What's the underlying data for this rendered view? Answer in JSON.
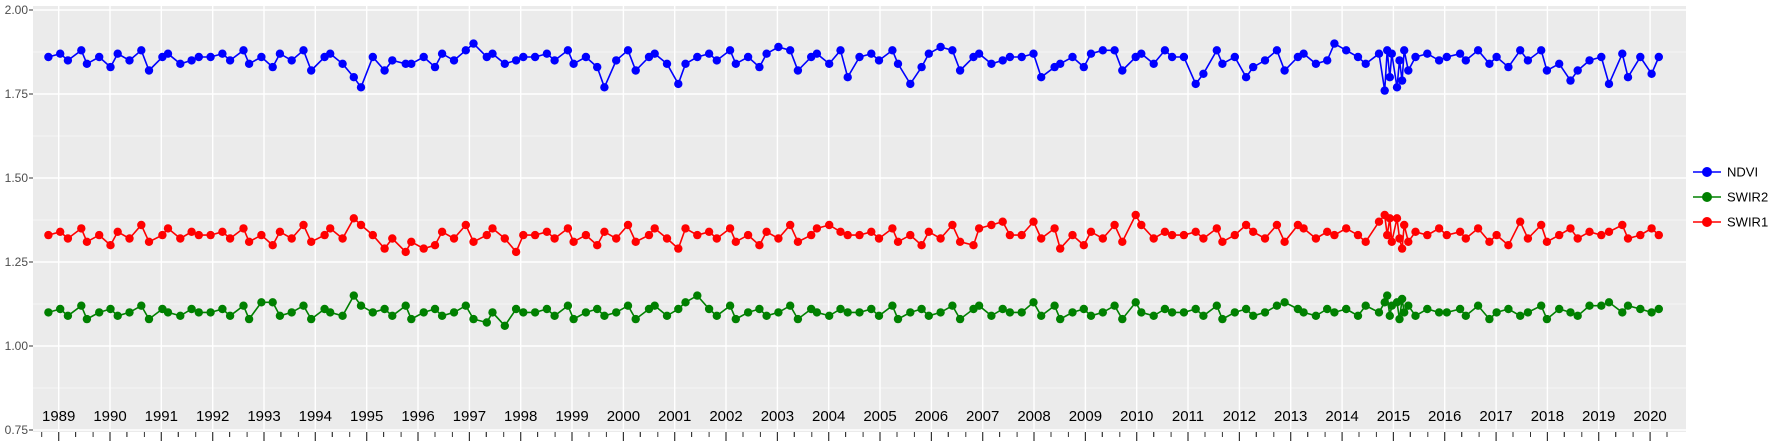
{
  "chart_data": {
    "type": "line",
    "title": "",
    "xlabel": "",
    "ylabel": "",
    "xlim": [
      1988.5,
      2020.7
    ],
    "ylim": [
      0.75,
      2.0
    ],
    "grid": true,
    "panel_bg": "#EBEBEB",
    "grid_color": "#FFFFFF",
    "tick_text_color": "#4D4D4D",
    "x_tick_years": [
      1989,
      1990,
      1991,
      1992,
      1993,
      1994,
      1995,
      1996,
      1997,
      1998,
      1999,
      2000,
      2001,
      2002,
      2003,
      2004,
      2005,
      2006,
      2007,
      2008,
      2009,
      2010,
      2011,
      2012,
      2013,
      2014,
      2015,
      2016,
      2017,
      2018,
      2019,
      2020
    ],
    "x_tick_labels": [
      "1989",
      "1990",
      "1991",
      "1992",
      "1993",
      "1994",
      "1995",
      "1996",
      "1997",
      "1998",
      "1999",
      "2000",
      "2001",
      "2002",
      "2003",
      "2004",
      "2005",
      "2006",
      "2007",
      "2008",
      "2009",
      "2010",
      "2011",
      "2012",
      "2013",
      "2014",
      "2015",
      "2016",
      "2017",
      "2018",
      "2019",
      "2020"
    ],
    "y_tick_values": [
      2.0,
      1.75,
      1.5,
      1.25,
      1.0,
      0.75
    ],
    "y_tick_labels": [
      "2.00",
      "1.75",
      "1.50",
      "1.25",
      "1.00",
      "0.75"
    ],
    "x": [
      1988.8,
      1989.03,
      1989.18,
      1989.44,
      1989.55,
      1989.79,
      1990.01,
      1990.15,
      1990.38,
      1990.61,
      1990.76,
      1991.02,
      1991.13,
      1991.37,
      1991.59,
      1991.73,
      1991.96,
      1992.19,
      1992.34,
      1992.6,
      1992.71,
      1992.95,
      1993.17,
      1993.31,
      1993.54,
      1993.77,
      1993.92,
      1994.18,
      1994.29,
      1994.53,
      1994.75,
      1994.89,
      1995.12,
      1995.35,
      1995.5,
      1995.76,
      1995.87,
      1996.11,
      1996.33,
      1996.47,
      1996.7,
      1996.93,
      1997.08,
      1997.34,
      1997.45,
      1997.69,
      1997.91,
      1998.05,
      1998.28,
      1998.51,
      1998.66,
      1998.92,
      1999.03,
      1999.27,
      1999.49,
      1999.63,
      1999.86,
      2000.09,
      2000.24,
      2000.5,
      2000.61,
      2000.85,
      2001.07,
      2001.21,
      2001.44,
      2001.67,
      2001.82,
      2002.08,
      2002.19,
      2002.43,
      2002.65,
      2002.79,
      2003.02,
      2003.25,
      2003.4,
      2003.66,
      2003.77,
      2004.01,
      2004.23,
      2004.37,
      2004.6,
      2004.83,
      2004.98,
      2005.24,
      2005.35,
      2005.59,
      2005.81,
      2005.95,
      2006.18,
      2006.41,
      2006.56,
      2006.82,
      2006.93,
      2007.17,
      2007.39,
      2007.53,
      2007.76,
      2007.99,
      2008.14,
      2008.4,
      2008.51,
      2008.75,
      2008.97,
      2009.11,
      2009.34,
      2009.57,
      2009.72,
      2009.98,
      2010.09,
      2010.33,
      2010.55,
      2010.69,
      2010.92,
      2011.15,
      2011.3,
      2011.56,
      2011.67,
      2011.91,
      2012.13,
      2012.27,
      2012.5,
      2012.73,
      2012.88,
      2013.14,
      2013.25,
      2013.49,
      2013.71,
      2013.85,
      2014.08,
      2014.31,
      2014.46,
      2014.72,
      2014.83,
      2014.88,
      2014.93,
      2014.97,
      2015.07,
      2015.12,
      2015.17,
      2015.21,
      2015.29,
      2015.43,
      2015.66,
      2015.89,
      2016.04,
      2016.3,
      2016.41,
      2016.65,
      2016.87,
      2017.01,
      2017.24,
      2017.47,
      2017.62,
      2017.88,
      2017.99,
      2018.23,
      2018.45,
      2018.59,
      2018.82,
      2019.05,
      2019.2,
      2019.46,
      2019.57,
      2019.81,
      2020.03,
      2020.17
    ],
    "series": [
      {
        "name": "NDVI",
        "color": "#0000FF",
        "values": [
          1.86,
          1.87,
          1.85,
          1.88,
          1.84,
          1.86,
          1.83,
          1.87,
          1.85,
          1.88,
          1.82,
          1.86,
          1.87,
          1.84,
          1.85,
          1.86,
          1.86,
          1.87,
          1.85,
          1.88,
          1.84,
          1.86,
          1.83,
          1.87,
          1.85,
          1.88,
          1.82,
          1.86,
          1.87,
          1.84,
          1.8,
          1.77,
          1.86,
          1.82,
          1.85,
          1.84,
          1.84,
          1.86,
          1.83,
          1.87,
          1.85,
          1.88,
          1.9,
          1.86,
          1.87,
          1.84,
          1.85,
          1.86,
          1.86,
          1.87,
          1.85,
          1.88,
          1.84,
          1.86,
          1.83,
          1.77,
          1.85,
          1.88,
          1.82,
          1.86,
          1.87,
          1.84,
          1.78,
          1.84,
          1.86,
          1.87,
          1.85,
          1.88,
          1.84,
          1.86,
          1.83,
          1.87,
          1.89,
          1.88,
          1.82,
          1.86,
          1.87,
          1.84,
          1.88,
          1.8,
          1.86,
          1.87,
          1.85,
          1.88,
          1.84,
          1.78,
          1.83,
          1.87,
          1.89,
          1.88,
          1.82,
          1.86,
          1.87,
          1.84,
          1.85,
          1.86,
          1.86,
          1.87,
          1.8,
          1.83,
          1.84,
          1.86,
          1.83,
          1.87,
          1.88,
          1.88,
          1.82,
          1.86,
          1.87,
          1.84,
          1.88,
          1.86,
          1.86,
          1.78,
          1.81,
          1.88,
          1.84,
          1.86,
          1.8,
          1.83,
          1.85,
          1.88,
          1.82,
          1.86,
          1.87,
          1.84,
          1.85,
          1.9,
          1.88,
          1.86,
          1.84,
          1.87,
          1.76,
          1.88,
          1.8,
          1.87,
          1.77,
          1.85,
          1.79,
          1.88,
          1.82,
          1.86,
          1.87,
          1.85,
          1.86,
          1.87,
          1.85,
          1.88,
          1.84,
          1.86,
          1.83,
          1.88,
          1.85,
          1.88,
          1.82,
          1.84,
          1.79,
          1.82,
          1.85,
          1.86,
          1.78,
          1.87,
          1.8,
          1.86,
          1.81,
          1.86
        ]
      },
      {
        "name": "SWIR2",
        "color": "#008000",
        "values": [
          1.1,
          1.11,
          1.09,
          1.12,
          1.08,
          1.1,
          1.11,
          1.09,
          1.1,
          1.12,
          1.08,
          1.11,
          1.1,
          1.09,
          1.11,
          1.1,
          1.1,
          1.11,
          1.09,
          1.12,
          1.08,
          1.13,
          1.13,
          1.09,
          1.1,
          1.12,
          1.08,
          1.11,
          1.1,
          1.09,
          1.15,
          1.12,
          1.1,
          1.11,
          1.09,
          1.12,
          1.08,
          1.1,
          1.11,
          1.09,
          1.1,
          1.12,
          1.08,
          1.07,
          1.1,
          1.06,
          1.11,
          1.1,
          1.1,
          1.11,
          1.09,
          1.12,
          1.08,
          1.1,
          1.11,
          1.09,
          1.1,
          1.12,
          1.08,
          1.11,
          1.12,
          1.09,
          1.11,
          1.13,
          1.15,
          1.11,
          1.09,
          1.12,
          1.08,
          1.1,
          1.11,
          1.09,
          1.1,
          1.12,
          1.08,
          1.11,
          1.1,
          1.09,
          1.11,
          1.1,
          1.1,
          1.11,
          1.09,
          1.12,
          1.08,
          1.1,
          1.11,
          1.09,
          1.1,
          1.12,
          1.08,
          1.11,
          1.12,
          1.09,
          1.11,
          1.1,
          1.1,
          1.13,
          1.09,
          1.12,
          1.08,
          1.1,
          1.11,
          1.09,
          1.1,
          1.12,
          1.08,
          1.13,
          1.1,
          1.09,
          1.11,
          1.1,
          1.1,
          1.11,
          1.09,
          1.12,
          1.08,
          1.1,
          1.11,
          1.09,
          1.1,
          1.12,
          1.13,
          1.11,
          1.1,
          1.09,
          1.11,
          1.1,
          1.11,
          1.09,
          1.12,
          1.1,
          1.13,
          1.15,
          1.09,
          1.12,
          1.13,
          1.08,
          1.14,
          1.1,
          1.12,
          1.09,
          1.11,
          1.1,
          1.1,
          1.11,
          1.09,
          1.12,
          1.08,
          1.1,
          1.11,
          1.09,
          1.1,
          1.12,
          1.08,
          1.11,
          1.1,
          1.09,
          1.12,
          1.12,
          1.13,
          1.1,
          1.12,
          1.11,
          1.1,
          1.11
        ]
      },
      {
        "name": "SWIR1",
        "color": "#FF0000",
        "values": [
          1.33,
          1.34,
          1.32,
          1.35,
          1.31,
          1.33,
          1.3,
          1.34,
          1.32,
          1.36,
          1.31,
          1.33,
          1.35,
          1.32,
          1.34,
          1.33,
          1.33,
          1.34,
          1.32,
          1.35,
          1.31,
          1.33,
          1.3,
          1.34,
          1.32,
          1.36,
          1.31,
          1.33,
          1.35,
          1.32,
          1.38,
          1.36,
          1.33,
          1.29,
          1.32,
          1.28,
          1.31,
          1.29,
          1.3,
          1.34,
          1.32,
          1.36,
          1.31,
          1.33,
          1.35,
          1.32,
          1.28,
          1.33,
          1.33,
          1.34,
          1.32,
          1.35,
          1.31,
          1.33,
          1.3,
          1.34,
          1.32,
          1.36,
          1.31,
          1.33,
          1.35,
          1.32,
          1.29,
          1.35,
          1.33,
          1.34,
          1.32,
          1.35,
          1.31,
          1.33,
          1.3,
          1.34,
          1.32,
          1.36,
          1.31,
          1.33,
          1.35,
          1.36,
          1.34,
          1.33,
          1.33,
          1.34,
          1.32,
          1.35,
          1.31,
          1.33,
          1.3,
          1.34,
          1.32,
          1.36,
          1.31,
          1.3,
          1.35,
          1.36,
          1.37,
          1.33,
          1.33,
          1.37,
          1.32,
          1.35,
          1.29,
          1.33,
          1.3,
          1.34,
          1.32,
          1.36,
          1.31,
          1.39,
          1.36,
          1.32,
          1.34,
          1.33,
          1.33,
          1.34,
          1.32,
          1.35,
          1.31,
          1.33,
          1.36,
          1.34,
          1.32,
          1.36,
          1.31,
          1.36,
          1.35,
          1.32,
          1.34,
          1.33,
          1.35,
          1.33,
          1.31,
          1.37,
          1.39,
          1.33,
          1.38,
          1.31,
          1.38,
          1.32,
          1.29,
          1.36,
          1.31,
          1.34,
          1.33,
          1.35,
          1.33,
          1.34,
          1.32,
          1.35,
          1.31,
          1.33,
          1.3,
          1.37,
          1.32,
          1.36,
          1.31,
          1.33,
          1.35,
          1.32,
          1.34,
          1.33,
          1.34,
          1.36,
          1.32,
          1.33,
          1.35,
          1.33
        ]
      }
    ],
    "legend": {
      "position": "right",
      "items": [
        {
          "label": "NDVI",
          "color": "#0000FF"
        },
        {
          "label": "SWIR2",
          "color": "#008000"
        },
        {
          "label": "SWIR1",
          "color": "#FF0000"
        }
      ]
    }
  }
}
